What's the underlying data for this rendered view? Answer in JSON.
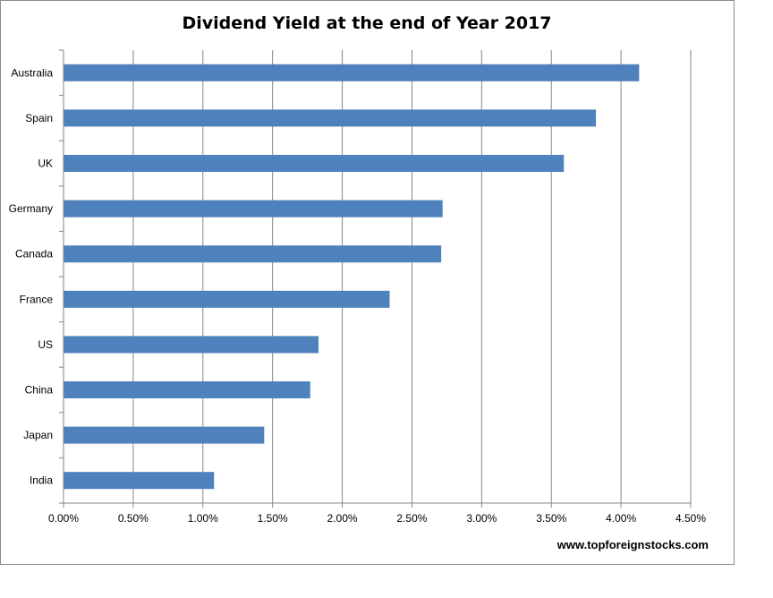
{
  "chart_data": {
    "type": "bar",
    "orientation": "horizontal",
    "title": "Dividend Yield at the end of Year 2017",
    "categories": [
      "Australia",
      "Spain",
      "UK",
      "Germany",
      "Canada",
      "France",
      "US",
      "China",
      "Japan",
      "India"
    ],
    "values": [
      4.13,
      3.82,
      3.59,
      2.72,
      2.71,
      2.34,
      1.83,
      1.77,
      1.44,
      1.08
    ],
    "xlim": [
      0,
      4.5
    ],
    "x_ticks": [
      "0.00%",
      "0.50%",
      "1.00%",
      "1.50%",
      "2.00%",
      "2.50%",
      "3.00%",
      "3.50%",
      "4.00%",
      "4.50%"
    ],
    "grid": "vertical",
    "legend": "none",
    "bar_color": "#4f81bd",
    "source": "www.topforeignstocks.com"
  }
}
